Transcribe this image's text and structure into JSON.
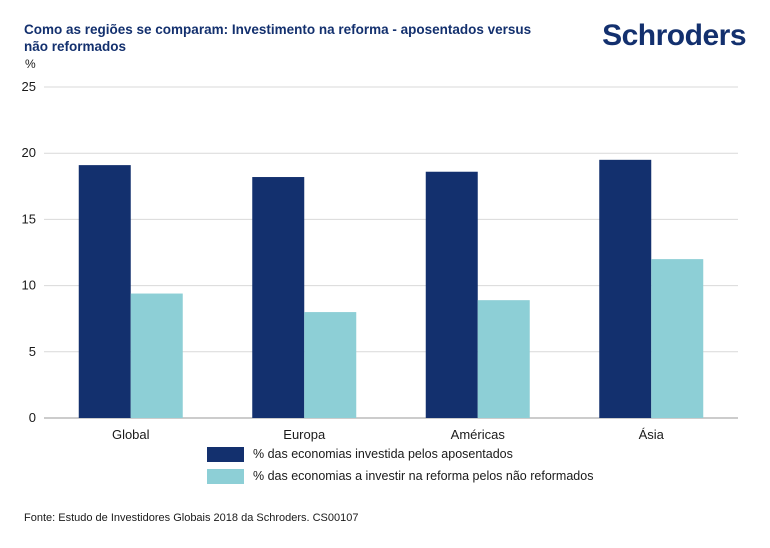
{
  "header": {
    "title": "Como as regiões se comparam: Investimento na reforma - aposentados versus não reformados",
    "logo_text": "Schroders",
    "unit": "%"
  },
  "footer": {
    "source": "Fonte: Estudo de Investidores Globais 2018 da Schroders. CS00107"
  },
  "colors": {
    "series1": "#13306e",
    "series2": "#8dcfd6",
    "brand": "#13306e"
  },
  "chart_data": {
    "type": "bar",
    "title": "Como as regiões se comparam: Investimento na reforma - aposentados versus não reformados",
    "ylabel": "%",
    "xlabel": "",
    "categories": [
      "Global",
      "Europa",
      "Américas",
      "Ásia"
    ],
    "ylim": [
      0,
      25
    ],
    "yticks": [
      0,
      5,
      10,
      15,
      20,
      25
    ],
    "grid": true,
    "legend_position": "bottom",
    "series": [
      {
        "name": "% das economias  investida pelos aposentados",
        "color": "#13306e",
        "values": [
          19.1,
          18.2,
          18.6,
          19.5
        ]
      },
      {
        "name": "% das economias a investir na reforma pelos não reformados",
        "color": "#8dcfd6",
        "values": [
          9.4,
          8.0,
          8.9,
          12.0
        ]
      }
    ]
  }
}
